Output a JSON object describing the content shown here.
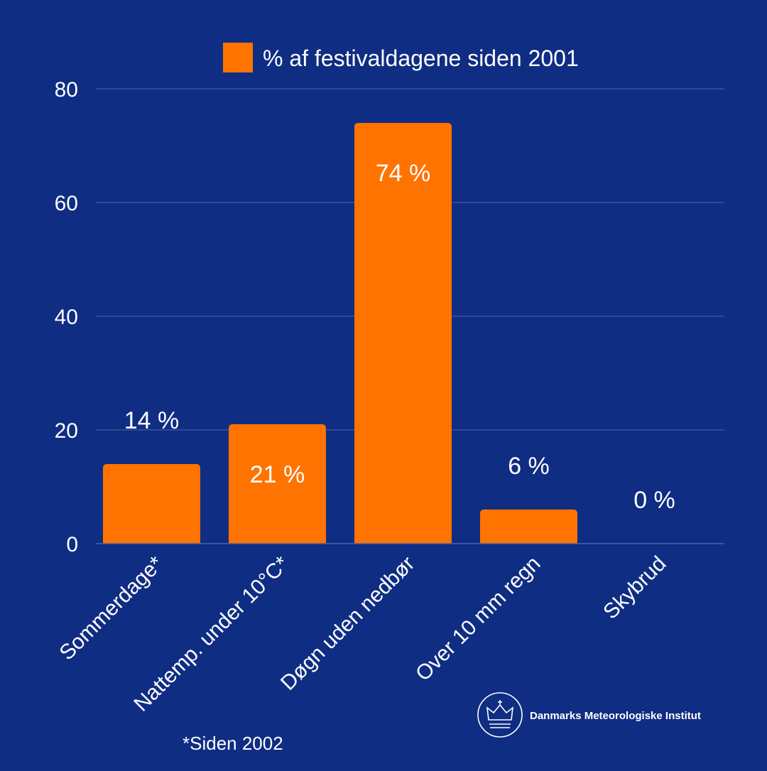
{
  "colors": {
    "background": "#0f2d82",
    "bar": "#ff7300",
    "grid": "#4e63a8",
    "text": "#ffffff"
  },
  "chart_data": {
    "type": "bar",
    "legend": "% af festivaldagene siden 2001",
    "legend_position": "top",
    "categories": [
      "Sommerdage*",
      "Nattemp. under 10°C*",
      "Døgn uden nedbør",
      "Over 10 mm regn",
      "Skybrud"
    ],
    "values": [
      14,
      21,
      74,
      6,
      0
    ],
    "data_labels": [
      "14 %",
      "21 %",
      "74 %",
      "6 %",
      "0 %"
    ],
    "ylim": [
      0,
      80
    ],
    "yticks": [
      0,
      20,
      40,
      60,
      80
    ],
    "grid": true
  },
  "footnote": "*Siden 2002",
  "logo": {
    "name": "Danmarks Meteorologiske Institut",
    "icon": "crown-icon"
  }
}
